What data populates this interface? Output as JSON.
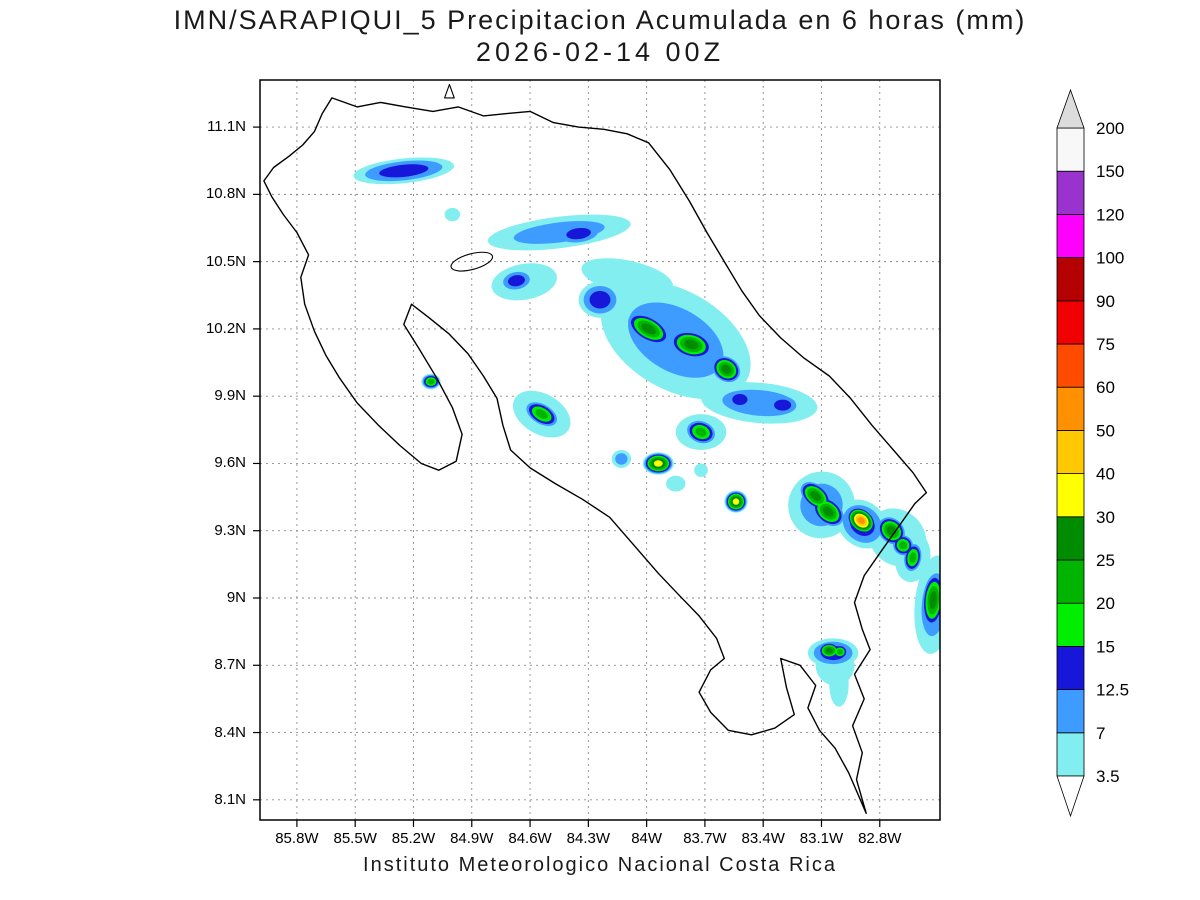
{
  "title": {
    "line1": "IMN/SARAPIQUI_5 Precipitacion Acumulada en 6 horas (mm)",
    "line2": "2026-02-14 00Z"
  },
  "footer": "Instituto Meteorologico Nacional Costa Rica",
  "chart_data": {
    "type": "heatmap",
    "title": "IMN/SARAPIQUI_5 Precipitacion Acumulada en 6 horas (mm) 2026-02-14 00Z",
    "units": "mm",
    "region": "Costa Rica",
    "lon_west": 85.99,
    "lon_east": 82.49,
    "lat_north": 11.31,
    "lat_south": 8.01,
    "lon_tick_values": [
      85.8,
      85.5,
      85.2,
      84.9,
      84.6,
      84.3,
      84.0,
      83.7,
      83.4,
      83.1,
      82.8
    ],
    "lon_tick_labels": [
      "85.8W",
      "85.5W",
      "85.2W",
      "84.9W",
      "84.6W",
      "84.3W",
      "84W",
      "83.7W",
      "83.4W",
      "83.1W",
      "82.8W"
    ],
    "lat_tick_values": [
      11.1,
      10.8,
      10.5,
      10.2,
      9.9,
      9.6,
      9.3,
      9.0,
      8.7,
      8.4,
      8.1
    ],
    "lat_tick_labels": [
      "11.1N",
      "10.8N",
      "10.5N",
      "10.2N",
      "9.9N",
      "9.6N",
      "9.3N",
      "9N",
      "8.7N",
      "8.4N",
      "8.1N"
    ],
    "colorbar": {
      "levels": [
        3.5,
        7,
        12.5,
        15,
        20,
        25,
        30,
        40,
        50,
        60,
        75,
        90,
        100,
        120,
        150,
        200
      ],
      "labels": [
        "3.5",
        "7",
        "12.5",
        "15",
        "20",
        "25",
        "30",
        "40",
        "50",
        "60",
        "75",
        "90",
        "100",
        "120",
        "150",
        "200"
      ],
      "colors": [
        "#82EEF0",
        "#3E9BFF",
        "#1717D9",
        "#00EE00",
        "#00B400",
        "#008C00",
        "#FFFF00",
        "#FFC800",
        "#FF9100",
        "#FF4B00",
        "#F00000",
        "#B40000",
        "#FF00FF",
        "#9A32CD",
        "#F8F8F8",
        "#DCDCDC"
      ],
      "under_color": "#FFFFFF"
    },
    "grid_color": "#8c8c8c",
    "coast_color": "#000000",
    "coastline": [
      [
        85.97,
        10.86
      ],
      [
        85.92,
        10.92
      ],
      [
        85.84,
        10.97
      ],
      [
        85.77,
        11.02
      ],
      [
        85.71,
        11.08
      ],
      [
        85.67,
        11.16
      ],
      [
        85.62,
        11.23
      ],
      [
        85.49,
        11.19
      ],
      [
        85.37,
        11.21
      ],
      [
        85.24,
        11.19
      ],
      [
        85.1,
        11.17
      ],
      [
        84.97,
        11.19
      ],
      [
        84.84,
        11.15
      ],
      [
        84.72,
        11.16
      ],
      [
        84.6,
        11.17
      ],
      [
        84.48,
        11.12
      ],
      [
        84.35,
        11.1
      ],
      [
        84.22,
        11.09
      ],
      [
        84.1,
        11.07
      ],
      [
        83.99,
        11.03
      ],
      [
        83.88,
        10.91
      ],
      [
        83.78,
        10.77
      ],
      [
        83.69,
        10.63
      ],
      [
        83.6,
        10.5
      ],
      [
        83.51,
        10.37
      ],
      [
        83.42,
        10.26
      ],
      [
        83.31,
        10.16
      ],
      [
        83.19,
        10.07
      ],
      [
        83.06,
        9.99
      ],
      [
        82.95,
        9.89
      ],
      [
        82.84,
        9.77
      ],
      [
        82.73,
        9.66
      ],
      [
        82.63,
        9.56
      ],
      [
        82.56,
        9.47
      ],
      [
        82.62,
        9.42
      ],
      [
        82.71,
        9.31
      ],
      [
        82.8,
        9.2
      ],
      [
        82.88,
        9.1
      ],
      [
        82.93,
        8.98
      ],
      [
        82.89,
        8.86
      ],
      [
        82.85,
        8.77
      ],
      [
        82.93,
        8.66
      ],
      [
        82.88,
        8.55
      ],
      [
        82.94,
        8.43
      ],
      [
        82.89,
        8.31
      ],
      [
        82.92,
        8.19
      ],
      [
        82.87,
        8.04
      ],
      [
        82.96,
        8.22
      ],
      [
        83.03,
        8.33
      ],
      [
        83.11,
        8.41
      ],
      [
        83.17,
        8.51
      ],
      [
        83.13,
        8.61
      ],
      [
        83.21,
        8.7
      ],
      [
        83.31,
        8.73
      ],
      [
        83.28,
        8.6
      ],
      [
        83.24,
        8.48
      ],
      [
        83.34,
        8.42
      ],
      [
        83.46,
        8.39
      ],
      [
        83.58,
        8.41
      ],
      [
        83.67,
        8.49
      ],
      [
        83.73,
        8.58
      ],
      [
        83.67,
        8.68
      ],
      [
        83.6,
        8.73
      ],
      [
        83.64,
        8.82
      ],
      [
        83.73,
        8.92
      ],
      [
        83.83,
        9.01
      ],
      [
        83.94,
        9.11
      ],
      [
        84.06,
        9.23
      ],
      [
        84.19,
        9.36
      ],
      [
        84.33,
        9.44
      ],
      [
        84.47,
        9.51
      ],
      [
        84.6,
        9.58
      ],
      [
        84.7,
        9.66
      ],
      [
        84.74,
        9.77
      ],
      [
        84.77,
        9.89
      ],
      [
        84.84,
        9.99
      ],
      [
        84.92,
        10.09
      ],
      [
        85.02,
        10.18
      ],
      [
        85.12,
        10.25
      ],
      [
        85.21,
        10.31
      ],
      [
        85.25,
        10.22
      ],
      [
        85.17,
        10.11
      ],
      [
        85.08,
        9.98
      ],
      [
        85.0,
        9.85
      ],
      [
        84.95,
        9.73
      ],
      [
        84.98,
        9.61
      ],
      [
        85.07,
        9.57
      ],
      [
        85.16,
        9.6
      ],
      [
        85.27,
        9.68
      ],
      [
        85.38,
        9.77
      ],
      [
        85.49,
        9.87
      ],
      [
        85.58,
        9.98
      ],
      [
        85.65,
        10.08
      ],
      [
        85.71,
        10.19
      ],
      [
        85.76,
        10.31
      ],
      [
        85.78,
        10.43
      ],
      [
        85.74,
        10.53
      ],
      [
        85.8,
        10.63
      ],
      [
        85.87,
        10.71
      ],
      [
        85.93,
        10.79
      ],
      [
        85.97,
        10.86
      ]
    ],
    "lake": {
      "lon": 84.9,
      "lat": 10.5,
      "rx": 0.11,
      "ry": 0.035,
      "rot": -15
    },
    "island_triangle": [
      [
        85.04,
        11.23
      ],
      [
        85.015,
        11.29
      ],
      [
        84.99,
        11.23
      ]
    ],
    "cells": [
      {
        "lon": 85.25,
        "lat": 10.905,
        "peak": 13,
        "rx": 0.26,
        "ry": 0.055,
        "rot": -6
      },
      {
        "lon": 84.45,
        "lat": 10.63,
        "peak": 8,
        "rx": 0.37,
        "ry": 0.07,
        "rot": -7
      },
      {
        "lon": 84.35,
        "lat": 10.625,
        "peak": 14,
        "rx": 0.13,
        "ry": 0.05,
        "rot": -7
      },
      {
        "lon": 84.63,
        "lat": 10.41,
        "peak": 5,
        "rx": 0.17,
        "ry": 0.08,
        "rot": -10
      },
      {
        "lon": 84.67,
        "lat": 10.415,
        "peak": 14,
        "rx": 0.09,
        "ry": 0.05,
        "rot": -10
      },
      {
        "lon": 85.0,
        "lat": 10.71,
        "peak": 4,
        "rx": 0.04,
        "ry": 0.03,
        "rot": 0
      },
      {
        "lon": 84.1,
        "lat": 10.43,
        "peak": 5,
        "rx": 0.24,
        "ry": 0.075,
        "rot": 12
      },
      {
        "lon": 83.85,
        "lat": 10.15,
        "peak": 8,
        "rx": 0.42,
        "ry": 0.22,
        "rot": 30
      },
      {
        "lon": 84.24,
        "lat": 10.33,
        "peak": 13,
        "rx": 0.11,
        "ry": 0.08,
        "rot": 0
      },
      {
        "lon": 83.99,
        "lat": 10.2,
        "peak": 28,
        "rx": 0.13,
        "ry": 0.06,
        "rot": 30
      },
      {
        "lon": 83.77,
        "lat": 10.13,
        "peak": 27,
        "rx": 0.12,
        "ry": 0.065,
        "rot": 15
      },
      {
        "lon": 83.59,
        "lat": 10.02,
        "peak": 28,
        "rx": 0.085,
        "ry": 0.06,
        "rot": 35
      },
      {
        "lon": 84.54,
        "lat": 9.82,
        "peak": 5,
        "rx": 0.16,
        "ry": 0.09,
        "rot": 30
      },
      {
        "lon": 84.54,
        "lat": 9.82,
        "peak": 22,
        "rx": 0.1,
        "ry": 0.05,
        "rot": 30
      },
      {
        "lon": 85.11,
        "lat": 9.965,
        "peak": 22,
        "rx": 0.05,
        "ry": 0.035,
        "rot": 0
      },
      {
        "lon": 83.42,
        "lat": 9.87,
        "peak": 8,
        "rx": 0.3,
        "ry": 0.09,
        "rot": 5
      },
      {
        "lon": 83.52,
        "lat": 9.885,
        "peak": 14,
        "rx": 0.08,
        "ry": 0.05,
        "rot": 0
      },
      {
        "lon": 83.3,
        "lat": 9.86,
        "peak": 14,
        "rx": 0.09,
        "ry": 0.05,
        "rot": 0
      },
      {
        "lon": 83.72,
        "lat": 9.74,
        "peak": 5,
        "rx": 0.13,
        "ry": 0.08,
        "rot": 0
      },
      {
        "lon": 83.72,
        "lat": 9.74,
        "peak": 22,
        "rx": 0.085,
        "ry": 0.055,
        "rot": 20
      },
      {
        "lon": 84.13,
        "lat": 9.62,
        "peak": 7,
        "rx": 0.05,
        "ry": 0.04,
        "rot": 0
      },
      {
        "lon": 83.94,
        "lat": 9.6,
        "peak": 32,
        "rx": 0.08,
        "ry": 0.05,
        "rot": 0
      },
      {
        "lon": 83.85,
        "lat": 9.51,
        "peak": 4,
        "rx": 0.05,
        "ry": 0.035,
        "rot": 0
      },
      {
        "lon": 83.72,
        "lat": 9.57,
        "peak": 4,
        "rx": 0.035,
        "ry": 0.03,
        "rot": 0
      },
      {
        "lon": 83.54,
        "lat": 9.43,
        "peak": 32,
        "rx": 0.06,
        "ry": 0.05,
        "rot": 0
      },
      {
        "lon": 83.1,
        "lat": 9.415,
        "peak": 8,
        "rx": 0.17,
        "ry": 0.15,
        "rot": 40
      },
      {
        "lon": 83.13,
        "lat": 9.455,
        "peak": 26,
        "rx": 0.1,
        "ry": 0.055,
        "rot": 40
      },
      {
        "lon": 83.065,
        "lat": 9.385,
        "peak": 28,
        "rx": 0.1,
        "ry": 0.06,
        "rot": 40
      },
      {
        "lon": 82.89,
        "lat": 9.33,
        "peak": 13,
        "rx": 0.14,
        "ry": 0.1,
        "rot": 40
      },
      {
        "lon": 82.895,
        "lat": 9.345,
        "peak": 55,
        "rx": 0.085,
        "ry": 0.055,
        "rot": 40
      },
      {
        "lon": 82.71,
        "lat": 9.27,
        "peak": 5,
        "rx": 0.16,
        "ry": 0.12,
        "rot": 45
      },
      {
        "lon": 82.74,
        "lat": 9.3,
        "peak": 26,
        "rx": 0.085,
        "ry": 0.06,
        "rot": 45
      },
      {
        "lon": 82.68,
        "lat": 9.235,
        "peak": 22,
        "rx": 0.06,
        "ry": 0.05,
        "rot": 45
      },
      {
        "lon": 82.63,
        "lat": 9.18,
        "peak": 5,
        "rx": 0.09,
        "ry": 0.11,
        "rot": 10
      },
      {
        "lon": 82.63,
        "lat": 9.18,
        "peak": 22,
        "rx": 0.05,
        "ry": 0.07,
        "rot": 10
      },
      {
        "lon": 82.52,
        "lat": 8.97,
        "peak": 8,
        "rx": 0.1,
        "ry": 0.22,
        "rot": 5
      },
      {
        "lon": 82.525,
        "lat": 8.99,
        "peak": 26,
        "rx": 0.06,
        "ry": 0.13,
        "rot": 5
      },
      {
        "lon": 83.04,
        "lat": 8.755,
        "peak": 13,
        "rx": 0.13,
        "ry": 0.065,
        "rot": 0
      },
      {
        "lon": 83.06,
        "lat": 8.765,
        "peak": 26,
        "rx": 0.06,
        "ry": 0.04,
        "rot": 0
      },
      {
        "lon": 83.005,
        "lat": 8.76,
        "peak": 24,
        "rx": 0.045,
        "ry": 0.035,
        "rot": 0
      },
      {
        "lon": 83.03,
        "lat": 8.7,
        "peak": 5,
        "rx": 0.1,
        "ry": 0.09,
        "rot": 0
      },
      {
        "lon": 83.01,
        "lat": 8.615,
        "peak": 4,
        "rx": 0.05,
        "ry": 0.1,
        "rot": 0
      }
    ]
  }
}
